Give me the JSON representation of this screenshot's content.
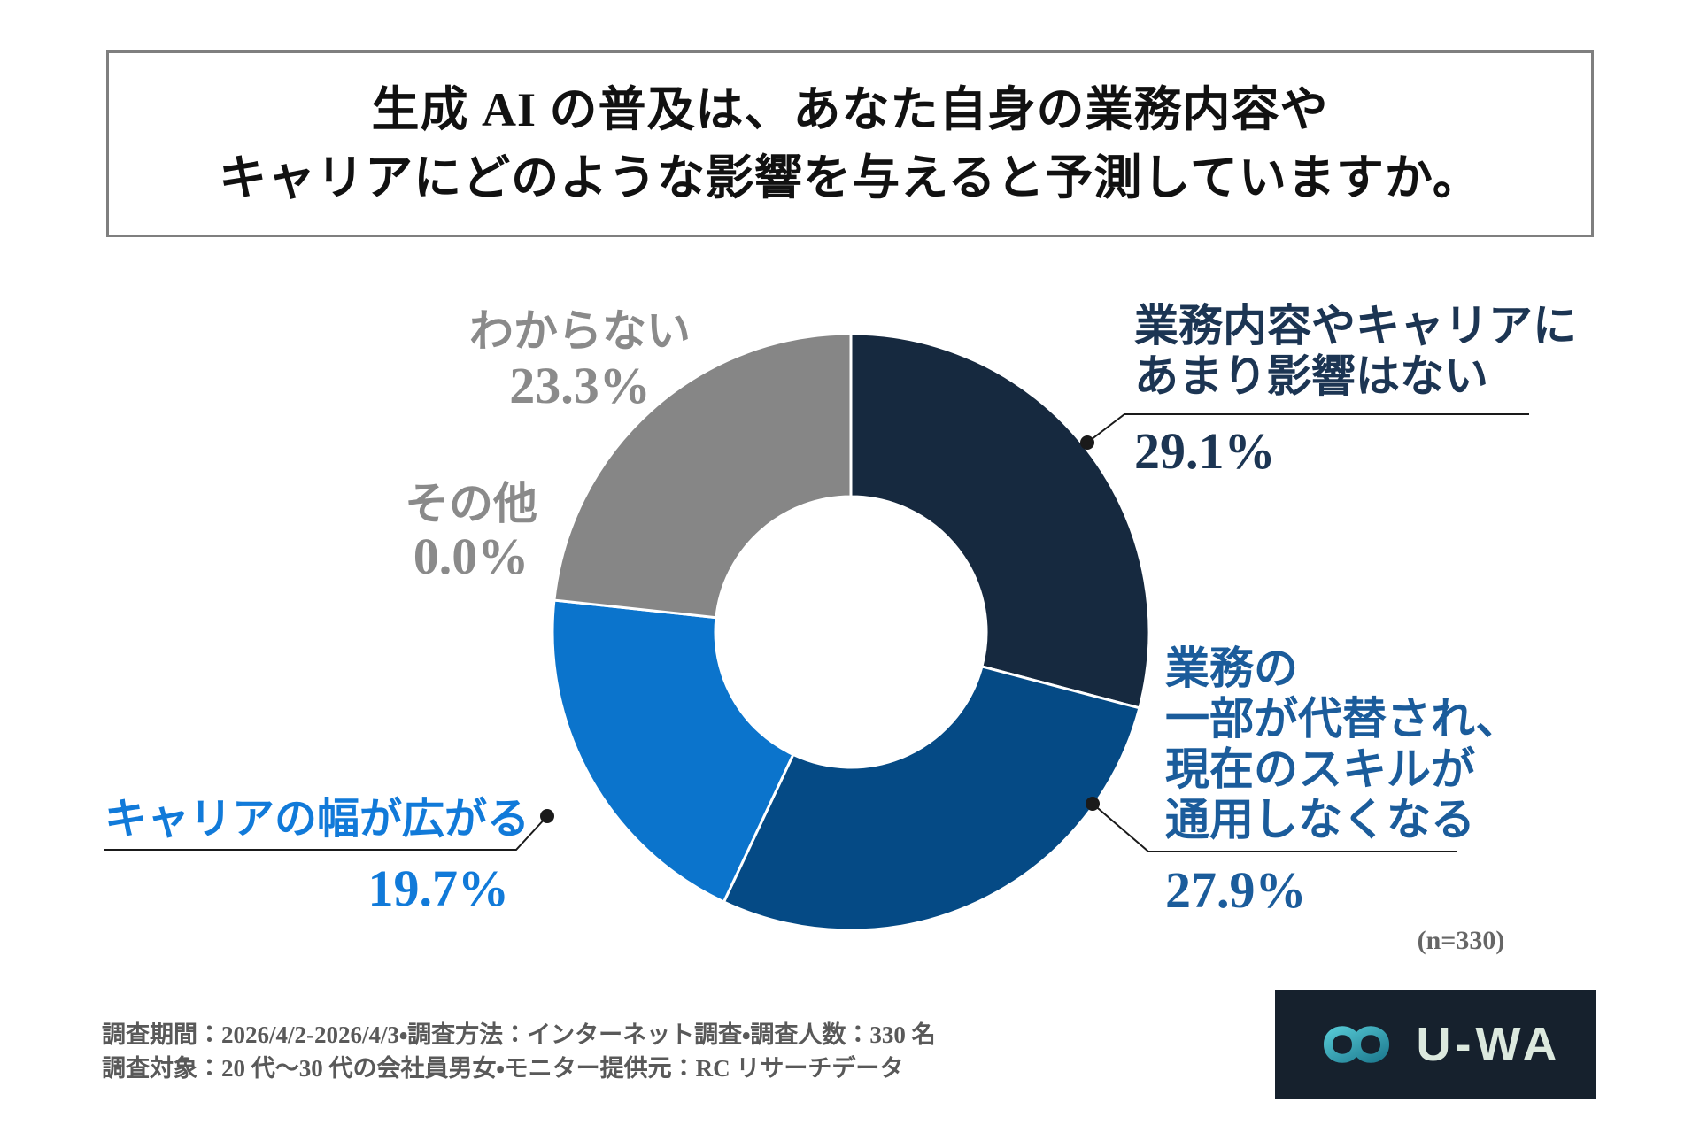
{
  "title": {
    "line1": "生成 AI の普及は、あなた自身の業務内容や",
    "line2": "キャリアにどのような影響を与えると予測していますか。"
  },
  "chart_data": {
    "type": "pie",
    "donut": true,
    "title": "生成 AI の普及は、あなた自身の業務内容やキャリアにどのような影響を与えると予測していますか。",
    "n": 330,
    "start_angle_deg": 0,
    "direction": "clockwise",
    "segments": [
      {
        "label": "業務内容やキャリアにあまり影響はない",
        "label_lines": [
          "業務内容やキャリアに",
          "あまり影響はない"
        ],
        "value": 29.1,
        "pct": "29.1%",
        "color": "#16293F",
        "text_color": "#1C3553"
      },
      {
        "label": "業務の一部が代替され、現在のスキルが通用しなくなる",
        "label_lines": [
          "業務の",
          "一部が代替され、",
          "現在のスキルが",
          "通用しなくなる"
        ],
        "value": 27.9,
        "pct": "27.9%",
        "color": "#054A85",
        "text_color": "#1B5C9B"
      },
      {
        "label": "キャリアの幅が広がる",
        "label_lines": [
          "キャリアの幅が広がる"
        ],
        "value": 19.7,
        "pct": "19.7%",
        "color": "#0B74CC",
        "text_color": "#117AD9"
      },
      {
        "label": "その他",
        "label_lines": [
          "その他"
        ],
        "value": 0.0,
        "pct": "0.0%",
        "color": "#8A8A8A",
        "text_color": "#8A8A8A"
      },
      {
        "label": "わからない",
        "label_lines": [
          "わからない"
        ],
        "value": 23.3,
        "pct": "23.3%",
        "color": "#868686",
        "text_color": "#8A8A8A"
      }
    ]
  },
  "n_label": "(n=330)",
  "footer": {
    "line1": "調査期間：2026/4/2-2026/4/3・調査方法：インターネット調査・調査人数：330 名",
    "line2": "調査対象：20 代～30 代の会社員男女・モニター提供元：RC リサーチデータ"
  },
  "logo": {
    "text": "U-WA",
    "bg_color": "#16212D",
    "text_color": "#DCE9DE",
    "teal_light": "#54C6D2",
    "teal_dark": "#1F7D92"
  }
}
